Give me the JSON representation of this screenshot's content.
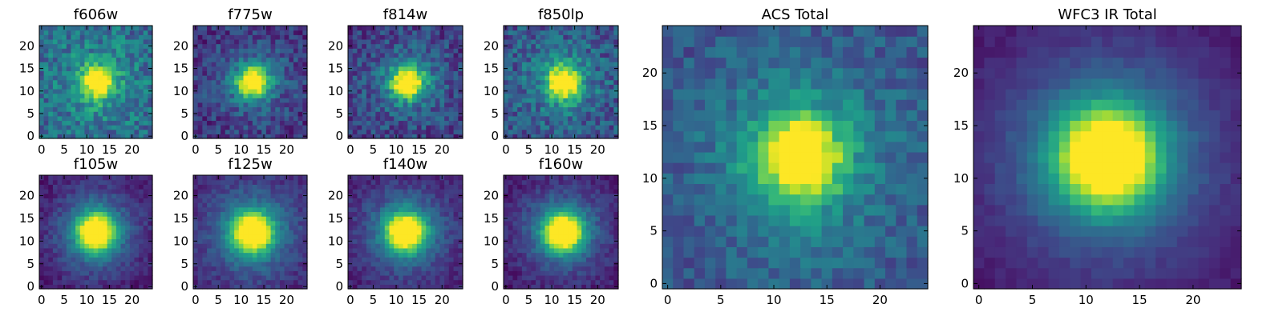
{
  "chart_data": [
    {
      "type": "heatmap",
      "title": "f606w",
      "grid_size": 25,
      "noise": 0.34,
      "background": 0.35,
      "core_sigma": 2.4,
      "halo_sigma": 6.0,
      "halo_amp": 0.2,
      "center": [
        12.5,
        12.0
      ],
      "x_ticks": [
        0,
        5,
        10,
        15,
        20
      ],
      "y_ticks": [
        0,
        5,
        10,
        15,
        20
      ],
      "xlim": [
        0,
        24
      ],
      "ylim": [
        0,
        24
      ]
    },
    {
      "type": "heatmap",
      "title": "f775w",
      "grid_size": 25,
      "noise": 0.28,
      "background": 0.15,
      "core_sigma": 2.3,
      "halo_sigma": 6.0,
      "halo_amp": 0.25,
      "center": [
        12.5,
        12.0
      ],
      "x_ticks": [
        0,
        5,
        10,
        15,
        20
      ],
      "y_ticks": [
        0,
        5,
        10,
        15,
        20
      ],
      "xlim": [
        0,
        24
      ],
      "ylim": [
        0,
        24
      ]
    },
    {
      "type": "heatmap",
      "title": "f814w",
      "grid_size": 25,
      "noise": 0.3,
      "background": 0.18,
      "core_sigma": 2.4,
      "halo_sigma": 6.0,
      "halo_amp": 0.25,
      "center": [
        12.5,
        12.0
      ],
      "x_ticks": [
        0,
        5,
        10,
        15,
        20
      ],
      "y_ticks": [
        0,
        5,
        10,
        15,
        20
      ],
      "xlim": [
        0,
        24
      ],
      "ylim": [
        0,
        24
      ]
    },
    {
      "type": "heatmap",
      "title": "f850lp",
      "grid_size": 25,
      "noise": 0.34,
      "background": 0.25,
      "core_sigma": 2.4,
      "halo_sigma": 6.0,
      "halo_amp": 0.25,
      "center": [
        12.5,
        12.0
      ],
      "x_ticks": [
        0,
        5,
        10,
        15,
        20
      ],
      "y_ticks": [
        0,
        5,
        10,
        15,
        20
      ],
      "xlim": [
        0,
        24
      ],
      "ylim": [
        0,
        24
      ]
    },
    {
      "type": "heatmap",
      "title": "f105w",
      "grid_size": 25,
      "noise": 0.15,
      "background": 0.06,
      "core_sigma": 2.7,
      "halo_sigma": 6.5,
      "halo_amp": 0.42,
      "center": [
        12.0,
        12.0
      ],
      "x_ticks": [
        0,
        5,
        10,
        15,
        20
      ],
      "y_ticks": [
        0,
        5,
        10,
        15,
        20
      ],
      "xlim": [
        0,
        24
      ],
      "ylim": [
        0,
        24
      ]
    },
    {
      "type": "heatmap",
      "title": "f125w",
      "grid_size": 25,
      "noise": 0.15,
      "background": 0.1,
      "core_sigma": 2.7,
      "halo_sigma": 6.5,
      "halo_amp": 0.45,
      "center": [
        12.5,
        12.0
      ],
      "x_ticks": [
        0,
        5,
        10,
        15,
        20
      ],
      "y_ticks": [
        0,
        5,
        10,
        15,
        20
      ],
      "xlim": [
        0,
        24
      ],
      "ylim": [
        0,
        24
      ]
    },
    {
      "type": "heatmap",
      "title": "f140w",
      "grid_size": 25,
      "noise": 0.15,
      "background": 0.08,
      "core_sigma": 2.7,
      "halo_sigma": 6.5,
      "halo_amp": 0.42,
      "center": [
        12.0,
        12.0
      ],
      "x_ticks": [
        0,
        5,
        10,
        15,
        20
      ],
      "y_ticks": [
        0,
        5,
        10,
        15,
        20
      ],
      "xlim": [
        0,
        24
      ],
      "ylim": [
        0,
        24
      ]
    },
    {
      "type": "heatmap",
      "title": "f160w",
      "grid_size": 25,
      "noise": 0.15,
      "background": 0.06,
      "core_sigma": 2.7,
      "halo_sigma": 6.5,
      "halo_amp": 0.42,
      "center": [
        12.5,
        12.0
      ],
      "x_ticks": [
        0,
        5,
        10,
        15,
        20
      ],
      "y_ticks": [
        0,
        5,
        10,
        15,
        20
      ],
      "xlim": [
        0,
        24
      ],
      "ylim": [
        0,
        24
      ]
    },
    {
      "type": "heatmap",
      "title": "ACS Total",
      "grid_size": 25,
      "noise": 0.22,
      "background": 0.25,
      "core_sigma": 2.5,
      "halo_sigma": 6.5,
      "halo_amp": 0.3,
      "center": [
        12.5,
        12.0
      ],
      "x_ticks": [
        0,
        5,
        10,
        15,
        20
      ],
      "y_ticks": [
        0,
        5,
        10,
        15,
        20
      ],
      "xlim": [
        0,
        24
      ],
      "ylim": [
        0,
        24
      ]
    },
    {
      "type": "heatmap",
      "title": "WFC3 IR Total",
      "grid_size": 25,
      "noise": 0.07,
      "background": 0.05,
      "core_sigma": 3.0,
      "halo_sigma": 7.0,
      "halo_amp": 0.45,
      "center": [
        12.0,
        12.0
      ],
      "x_ticks": [
        0,
        5,
        10,
        15,
        20
      ],
      "y_ticks": [
        0,
        5,
        10,
        15,
        20
      ],
      "xlim": [
        0,
        24
      ],
      "ylim": [
        0,
        24
      ]
    }
  ],
  "colormap": [
    "#440154",
    "#482878",
    "#3e4989",
    "#31688e",
    "#26828e",
    "#1f9e89",
    "#35b779",
    "#6ece58",
    "#b5de2b",
    "#fde725"
  ]
}
